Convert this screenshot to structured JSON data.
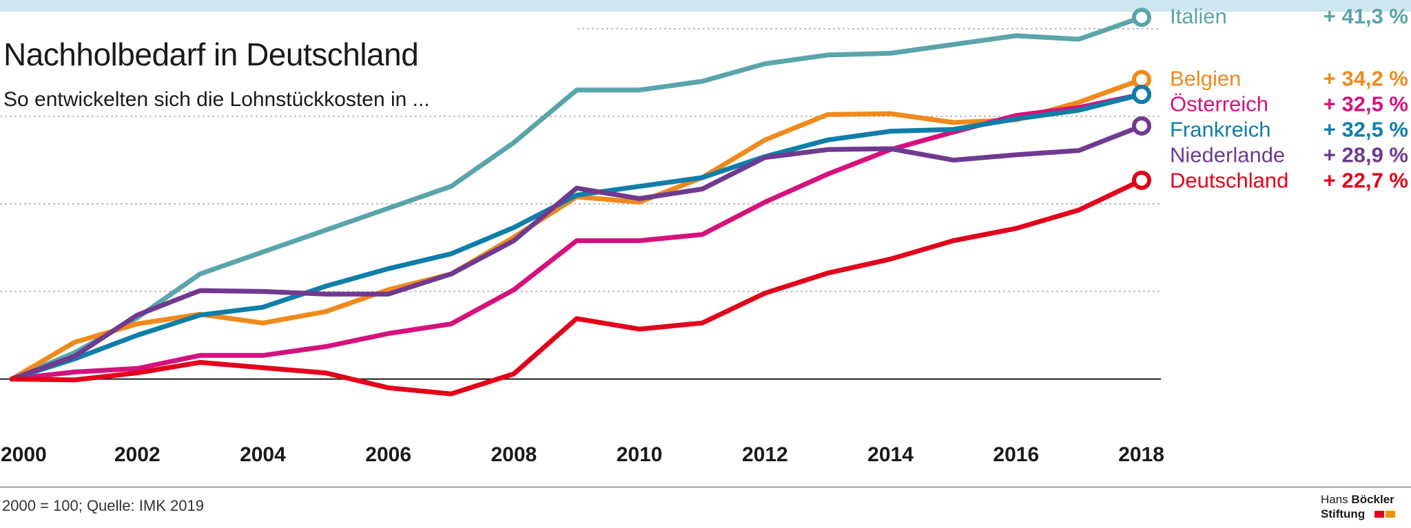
{
  "header": {
    "title": "Nachholbedarf in Deutschland",
    "subtitle": "So entwickelten sich die Lohnstückkosten in ..."
  },
  "footer": {
    "source": "2000 = 100; Quelle: IMK 2019",
    "logo_line1_light": "Hans",
    "logo_line1_bold": "Böckler",
    "logo_line2": "Stiftung",
    "logo_colors": [
      "#e2001a",
      "#f39200"
    ]
  },
  "colors": {
    "background": "#ffffff",
    "top_band": "#cfe6ef",
    "gridline": "#aaaaaa",
    "baseline": "#1a1a1a"
  },
  "chart_data": {
    "type": "line",
    "x": [
      2000,
      2001,
      2002,
      2003,
      2004,
      2005,
      2006,
      2007,
      2008,
      2009,
      2010,
      2011,
      2012,
      2013,
      2014,
      2015,
      2016,
      2017,
      2018
    ],
    "x_tick_labels": [
      "2000",
      "2002",
      "2004",
      "2006",
      "2008",
      "2010",
      "2012",
      "2014",
      "2016",
      "2018"
    ],
    "ylim": [
      96,
      142
    ],
    "y_gridlines": [
      110,
      120,
      130,
      140
    ],
    "baseline_y": 100,
    "grid": true,
    "legend": "right",
    "series": [
      {
        "name": "Italien",
        "change": "+ 41,3 %",
        "color": "#59a5ab",
        "values": [
          100,
          103,
          107,
          112,
          114.5,
          117,
          119.5,
          122,
          127,
          133,
          133,
          134,
          136,
          137,
          137.2,
          138.2,
          139.2,
          138.8,
          141.3
        ]
      },
      {
        "name": "Belgien",
        "change": "+ 34,2 %",
        "color": "#f08a1c",
        "values": [
          100,
          104.2,
          106.3,
          107.4,
          106.4,
          107.7,
          110.2,
          112,
          116.2,
          120.8,
          120.2,
          123,
          127.3,
          130.2,
          130.3,
          129.3,
          129.6,
          131.6,
          134.2
        ]
      },
      {
        "name": "Österreich",
        "change": "+ 32,5 %",
        "color": "#d6117e",
        "values": [
          100,
          100.8,
          101.2,
          102.7,
          102.7,
          103.7,
          105.2,
          106.3,
          110.2,
          115.8,
          115.8,
          116.5,
          120.2,
          123.4,
          126.2,
          128.2,
          130.1,
          131,
          132.5
        ]
      },
      {
        "name": "Frankreich",
        "change": "+ 32,5 %",
        "color": "#0f7ea8",
        "values": [
          100,
          102.3,
          105,
          107.3,
          108.2,
          110.6,
          112.6,
          114.3,
          117.3,
          121,
          122,
          123,
          125.4,
          127.3,
          128.3,
          128.5,
          129.7,
          130.7,
          132.5
        ]
      },
      {
        "name": "Niederlande",
        "change": "+ 28,9 %",
        "color": "#6f3a8f",
        "values": [
          100,
          102.6,
          107.3,
          110.1,
          110,
          109.7,
          109.7,
          112,
          115.8,
          121.8,
          120.6,
          121.7,
          125.3,
          126.2,
          126.3,
          125,
          125.6,
          126.1,
          128.9
        ]
      },
      {
        "name": "Deutschland",
        "change": "+ 22,7 %",
        "color": "#e2001a",
        "values": [
          100,
          99.9,
          100.7,
          101.9,
          101.3,
          100.7,
          99,
          98.3,
          100.6,
          106.9,
          105.7,
          106.4,
          109.8,
          112.1,
          113.7,
          115.8,
          117.2,
          119.3,
          122.7
        ]
      }
    ]
  }
}
